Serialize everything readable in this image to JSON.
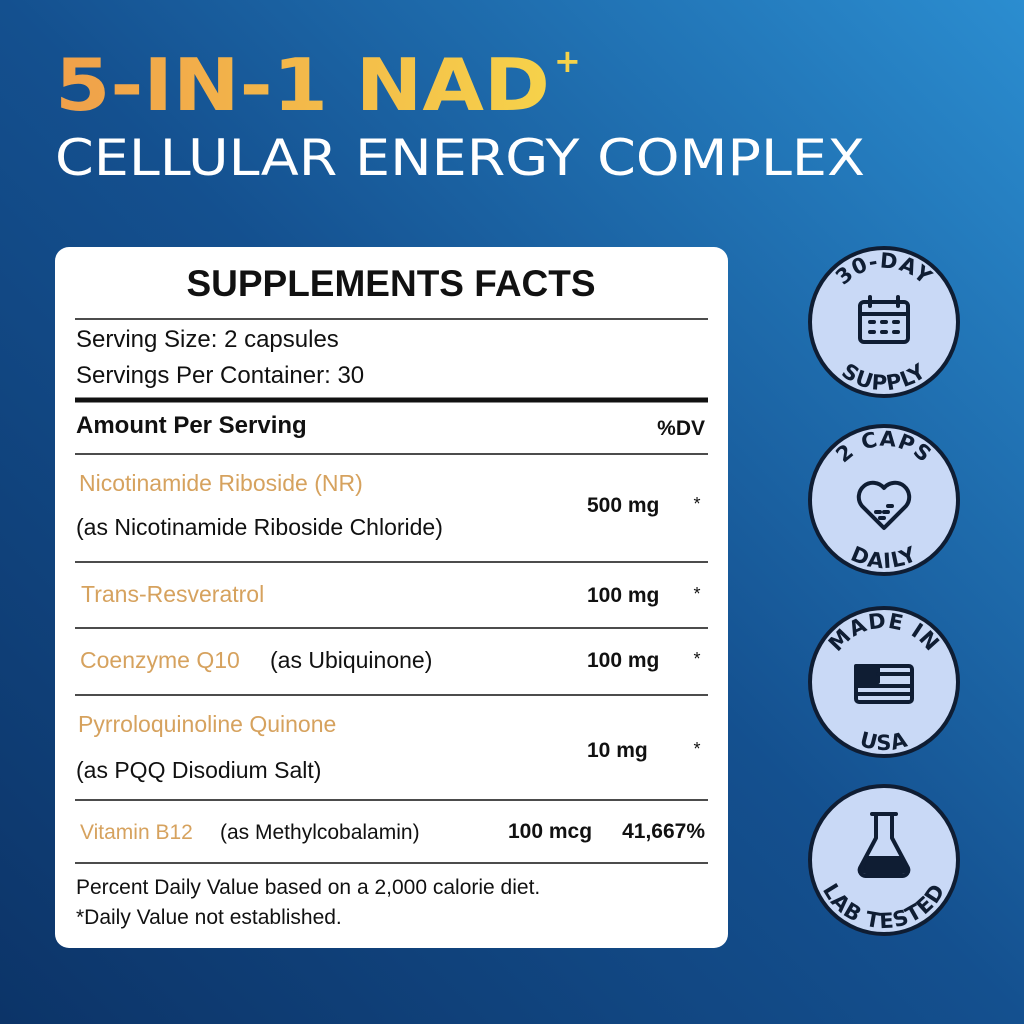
{
  "header": {
    "title": "5-IN-1 NAD",
    "title_superscript": "+",
    "subtitle": "CELLULAR ENERGY COMPLEX"
  },
  "facts": {
    "title": "SUPPLEMENTS FACTS",
    "serving_size": "Serving Size: 2 capsules",
    "servings_per_container": "Servings Per Container: 30",
    "amount_header": "Amount Per Serving",
    "dv_header": "%DV",
    "rows": [
      {
        "name": "Nicotinamide Riboside (NR)",
        "detail": "(as Nicotinamide Riboside Chloride)",
        "amount": "500 mg",
        "dv": "*"
      },
      {
        "name": "Trans-Resveratrol",
        "amount": "100 mg",
        "dv": "*"
      },
      {
        "name": "Coenzyme Q10",
        "detail": "(as Ubiquinone)",
        "amount": "100 mg",
        "dv": "*"
      },
      {
        "name": "Pyrroloquinoline Quinone",
        "detail": "(as PQQ Disodium Salt)",
        "amount": "10 mg",
        "dv": "*"
      },
      {
        "name": "Vitamin B12",
        "detail": "(as Methylcobalamin)",
        "amount": "100 mcg",
        "dv": "41,667%"
      }
    ],
    "footnotes": [
      "Percent Daily Value based on a 2,000 calorie diet.",
      "*Daily Value not established."
    ]
  },
  "badges": [
    {
      "top": "30-DAY",
      "bottom": "SUPPLY"
    },
    {
      "top": "2 CAPS",
      "bottom": "DAILY"
    },
    {
      "top": "MADE IN",
      "bottom": "USA"
    },
    {
      "bottom": "LAB TESTED"
    }
  ]
}
